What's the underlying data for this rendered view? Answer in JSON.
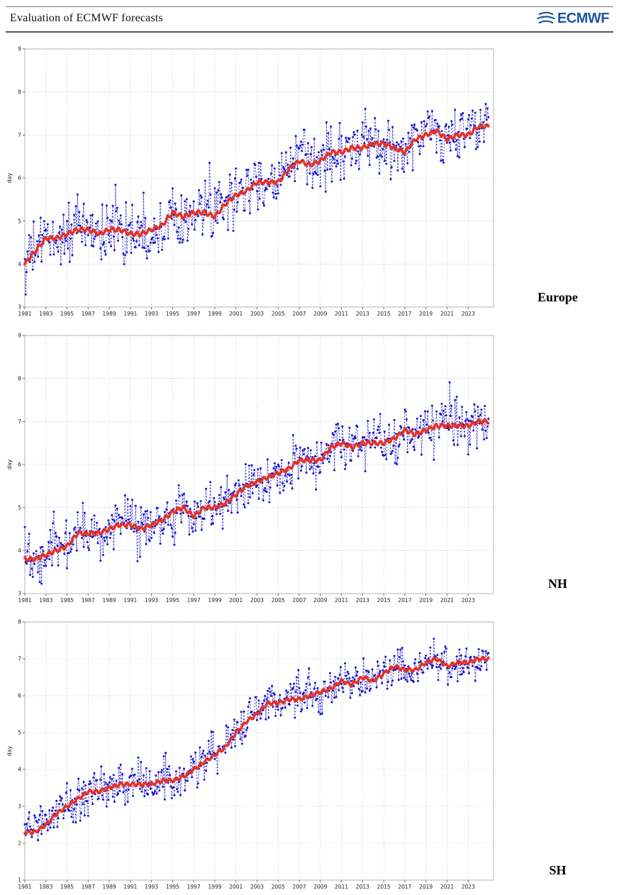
{
  "header": {
    "title": "Evaluation of ECMWF forecasts",
    "logo_text": "ECMWF",
    "logo_color": "#1c55a5"
  },
  "chart_data": [
    {
      "type": "line",
      "region_label": "Europe",
      "ylabel": "day",
      "ylim": [
        3,
        9
      ],
      "yticks": [
        3,
        4,
        5,
        6,
        7,
        8,
        9
      ],
      "xlim": [
        1981,
        2025.4
      ],
      "xtick_years": [
        1981,
        1983,
        1985,
        1987,
        1989,
        1991,
        1993,
        1995,
        1997,
        1999,
        2001,
        2003,
        2005,
        2007,
        2009,
        2011,
        2013,
        2015,
        2017,
        2019,
        2021,
        2023
      ],
      "grid": true,
      "legend": "none",
      "series": [
        {
          "name": "monthly",
          "color": "#1414cc",
          "style": "dashed-with-dots"
        },
        {
          "name": "running mean",
          "color": "#e23228",
          "style": "thick-solid-with-dots"
        }
      ],
      "trend_years": [
        1981,
        1982,
        1983,
        1984,
        1985,
        1986,
        1987,
        1988,
        1989,
        1990,
        1991,
        1992,
        1993,
        1994,
        1995,
        1996,
        1997,
        1998,
        1999,
        2000,
        2001,
        2002,
        2003,
        2004,
        2005,
        2006,
        2007,
        2008,
        2009,
        2010,
        2011,
        2012,
        2013,
        2014,
        2015,
        2016,
        2017,
        2018,
        2019,
        2020,
        2021,
        2022,
        2023,
        2024
      ],
      "trend_values": [
        4.0,
        4.3,
        4.6,
        4.6,
        4.7,
        4.8,
        4.8,
        4.7,
        4.8,
        4.8,
        4.7,
        4.7,
        4.8,
        4.9,
        5.2,
        5.1,
        5.2,
        5.2,
        5.1,
        5.4,
        5.6,
        5.7,
        5.9,
        5.9,
        5.9,
        6.2,
        6.4,
        6.3,
        6.4,
        6.6,
        6.6,
        6.7,
        6.7,
        6.8,
        6.8,
        6.7,
        6.6,
        6.9,
        7.0,
        7.1,
        6.9,
        7.0,
        7.0,
        7.2
      ],
      "scatter_amplitude": 0.52
    },
    {
      "type": "line",
      "region_label": "NH",
      "ylabel": "day",
      "ylim": [
        3,
        9
      ],
      "yticks": [
        3,
        4,
        5,
        6,
        7,
        8,
        9
      ],
      "xlim": [
        1981,
        2025.4
      ],
      "xtick_years": [
        1981,
        1983,
        1985,
        1987,
        1989,
        1991,
        1993,
        1995,
        1997,
        1999,
        2001,
        2003,
        2005,
        2007,
        2009,
        2011,
        2013,
        2015,
        2017,
        2019,
        2021,
        2023
      ],
      "grid": true,
      "legend": "none",
      "series": [
        {
          "name": "monthly",
          "color": "#1414cc",
          "style": "dashed-with-dots"
        },
        {
          "name": "running mean",
          "color": "#e23228",
          "style": "thick-solid-with-dots"
        }
      ],
      "trend_years": [
        1981,
        1982,
        1983,
        1984,
        1985,
        1986,
        1987,
        1988,
        1989,
        1990,
        1991,
        1992,
        1993,
        1994,
        1995,
        1996,
        1997,
        1998,
        1999,
        2000,
        2001,
        2002,
        2003,
        2004,
        2005,
        2006,
        2007,
        2008,
        2009,
        2010,
        2011,
        2012,
        2013,
        2014,
        2015,
        2016,
        2017,
        2018,
        2019,
        2020,
        2021,
        2022,
        2023,
        2024
      ],
      "trend_values": [
        3.8,
        3.8,
        3.9,
        4.0,
        4.1,
        4.4,
        4.4,
        4.4,
        4.5,
        4.6,
        4.6,
        4.5,
        4.6,
        4.7,
        4.9,
        5.0,
        4.8,
        5.0,
        5.0,
        5.1,
        5.3,
        5.5,
        5.6,
        5.7,
        5.8,
        5.9,
        6.1,
        6.1,
        6.1,
        6.4,
        6.5,
        6.4,
        6.5,
        6.5,
        6.5,
        6.6,
        6.8,
        6.7,
        6.8,
        6.9,
        6.9,
        6.9,
        6.9,
        7.0
      ],
      "scatter_amplitude": 0.45
    },
    {
      "type": "line",
      "region_label": "SH",
      "ylabel": "day",
      "ylim": [
        1,
        8
      ],
      "yticks": [
        1,
        2,
        3,
        4,
        5,
        6,
        7,
        8
      ],
      "xlim": [
        1981,
        2025.4
      ],
      "xtick_years": [
        1981,
        1983,
        1985,
        1987,
        1989,
        1991,
        1993,
        1995,
        1997,
        1999,
        2001,
        2003,
        2005,
        2007,
        2009,
        2011,
        2013,
        2015,
        2017,
        2019,
        2021,
        2023
      ],
      "grid": true,
      "legend": "none",
      "series": [
        {
          "name": "monthly",
          "color": "#1414cc",
          "style": "dashed-with-dots"
        },
        {
          "name": "running mean",
          "color": "#e23228",
          "style": "thick-solid-with-dots"
        }
      ],
      "trend_years": [
        1981,
        1982,
        1983,
        1984,
        1985,
        1986,
        1987,
        1988,
        1989,
        1990,
        1991,
        1992,
        1993,
        1994,
        1995,
        1996,
        1997,
        1998,
        1999,
        2000,
        2001,
        2002,
        2003,
        2004,
        2005,
        2006,
        2007,
        2008,
        2009,
        2010,
        2011,
        2012,
        2013,
        2014,
        2015,
        2016,
        2017,
        2018,
        2019,
        2020,
        2021,
        2022,
        2023,
        2024
      ],
      "trend_values": [
        2.3,
        2.3,
        2.5,
        2.8,
        3.0,
        3.2,
        3.4,
        3.4,
        3.5,
        3.6,
        3.6,
        3.6,
        3.6,
        3.7,
        3.7,
        3.8,
        4.0,
        4.2,
        4.4,
        4.6,
        5.0,
        5.3,
        5.5,
        5.8,
        5.8,
        5.9,
        5.9,
        6.0,
        6.1,
        6.2,
        6.4,
        6.3,
        6.5,
        6.4,
        6.6,
        6.8,
        6.7,
        6.7,
        6.9,
        7.0,
        6.8,
        6.9,
        6.9,
        7.0
      ],
      "scatter_amplitude": 0.45
    }
  ]
}
